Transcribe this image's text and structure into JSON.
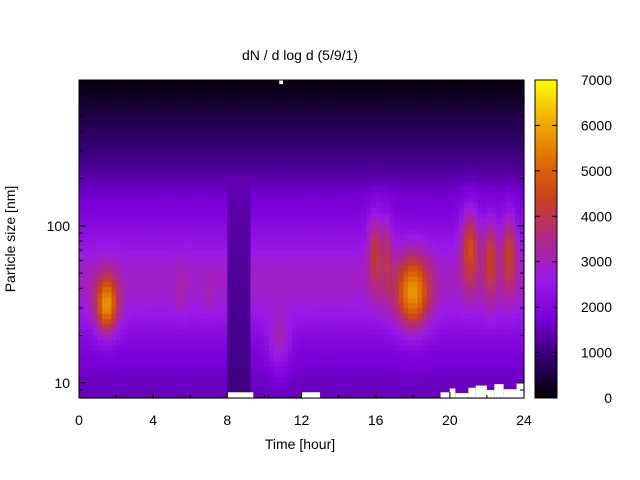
{
  "chart_data": {
    "type": "heatmap",
    "title": "dN / d log d (5/9/1)",
    "xlabel": "Time [hour]",
    "ylabel": "Particle size [nm]",
    "x_range": [
      0,
      24
    ],
    "x_ticks": [
      0,
      4,
      8,
      12,
      16,
      20,
      24
    ],
    "x_tick_labels": [
      "0",
      "4",
      "8",
      "12",
      "16",
      "20",
      "24"
    ],
    "y_scale": "log",
    "y_range": [
      8,
      850
    ],
    "y_ticks": [
      10,
      100
    ],
    "y_tick_labels": [
      "10",
      "100"
    ],
    "colorbar": {
      "range": [
        0,
        7000
      ],
      "ticks": [
        0,
        1000,
        2000,
        3000,
        4000,
        5000,
        6000,
        7000
      ],
      "tick_labels": [
        "0",
        "1000",
        "2000",
        "3000",
        "4000",
        "5000",
        "6000",
        "7000"
      ],
      "colormap": [
        "#000000",
        "#330070",
        "#7a00d8",
        "#9a1ae6",
        "#b02888",
        "#c8401e",
        "#e07000",
        "#f0b000",
        "#ffff00"
      ]
    },
    "background_field": {
      "description_free": true,
      "base_peak_size_nm": 45,
      "base_peak_value": 2900,
      "base_width_log10": 0.38,
      "floor_value": 1500,
      "top_floor_value": 100
    },
    "features": [
      {
        "time_hour": 1.5,
        "size_nm": 32,
        "value": 5800,
        "time_width": 0.6,
        "size_width_log10": 0.18
      },
      {
        "time_hour": 5.5,
        "size_nm": 40,
        "value": 3200,
        "time_width": 0.3,
        "size_width_log10": 0.15
      },
      {
        "time_hour": 7.0,
        "size_nm": 38,
        "value": 3100,
        "time_width": 0.3,
        "size_width_log10": 0.12
      },
      {
        "time_hour": 10.8,
        "size_nm": 20,
        "value": 3100,
        "time_width": 0.6,
        "size_width_log10": 0.2
      },
      {
        "time_hour": 16.0,
        "size_nm": 65,
        "value": 4200,
        "time_width": 0.4,
        "size_width_log10": 0.25
      },
      {
        "time_hour": 16.6,
        "size_nm": 60,
        "value": 3900,
        "time_width": 0.3,
        "size_width_log10": 0.25
      },
      {
        "time_hour": 18.0,
        "size_nm": 38,
        "value": 5800,
        "time_width": 0.9,
        "size_width_log10": 0.22
      },
      {
        "time_hour": 21.1,
        "size_nm": 70,
        "value": 4600,
        "time_width": 0.5,
        "size_width_log10": 0.25
      },
      {
        "time_hour": 22.2,
        "size_nm": 60,
        "value": 4400,
        "time_width": 0.4,
        "size_width_log10": 0.25
      },
      {
        "time_hour": 23.2,
        "size_nm": 65,
        "value": 4400,
        "time_width": 0.4,
        "size_width_log10": 0.25
      }
    ],
    "dark_gap": {
      "time_start": 8.0,
      "time_end": 9.3,
      "value": 1000
    },
    "missing_cells": [
      {
        "time_start": 8.0,
        "time_end": 9.4,
        "size_low_nm": 8.0,
        "size_high_nm": 8.7
      },
      {
        "time_start": 10.8,
        "time_end": 11.0,
        "size_low_nm": 800,
        "size_high_nm": 850
      },
      {
        "time_start": 12.0,
        "time_end": 13.0,
        "size_low_nm": 8.0,
        "size_high_nm": 8.7
      },
      {
        "time_start": 19.5,
        "time_end": 20.0,
        "size_low_nm": 8.0,
        "size_high_nm": 8.7
      },
      {
        "time_start": 20.0,
        "time_end": 20.3,
        "size_low_nm": 8.0,
        "size_high_nm": 9.2
      },
      {
        "time_start": 20.3,
        "time_end": 21.0,
        "size_low_nm": 8.0,
        "size_high_nm": 8.6
      },
      {
        "time_start": 21.0,
        "time_end": 21.4,
        "size_low_nm": 8.0,
        "size_high_nm": 9.3
      },
      {
        "time_start": 21.4,
        "time_end": 22.0,
        "size_low_nm": 8.0,
        "size_high_nm": 9.6
      },
      {
        "time_start": 22.0,
        "time_end": 22.4,
        "size_low_nm": 8.0,
        "size_high_nm": 9.0
      },
      {
        "time_start": 22.4,
        "time_end": 22.9,
        "size_low_nm": 8.0,
        "size_high_nm": 9.8
      },
      {
        "time_start": 22.9,
        "time_end": 23.6,
        "size_low_nm": 8.0,
        "size_high_nm": 9.1
      },
      {
        "time_start": 23.6,
        "time_end": 24.0,
        "size_low_nm": 8.0,
        "size_high_nm": 9.9
      }
    ],
    "grid": false,
    "legend": "none"
  }
}
